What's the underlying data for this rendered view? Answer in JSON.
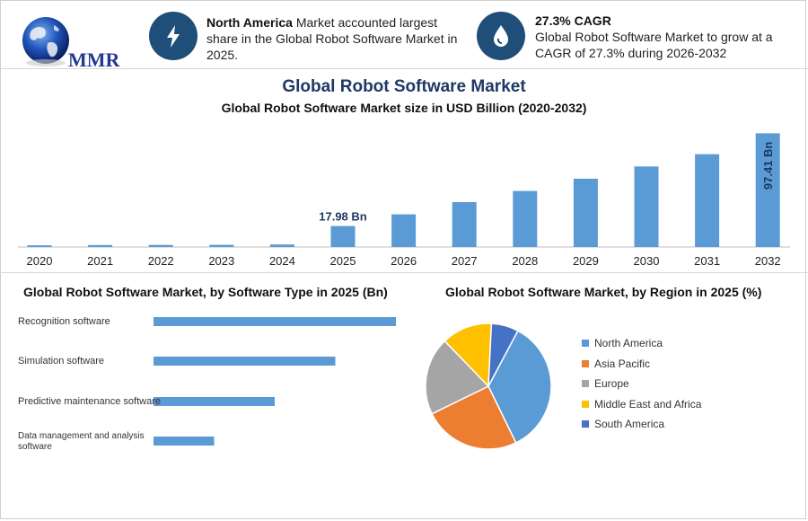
{
  "header": {
    "logo_text": "MMR",
    "info1": {
      "bold": "North America",
      "text": " Market accounted largest share in the Global Robot Software Market in 2025."
    },
    "info2": {
      "bold": "27.3% CAGR",
      "text": "Global Robot Software Market to grow at a CAGR of 27.3% during 2026-2032"
    }
  },
  "title": "Global Robot Software Market",
  "subtitle": "Global Robot Software Market size in USD Billion (2020-2032)",
  "colors": {
    "bar": "#5b9bd5",
    "navy": "#1f4e79",
    "north_america": "#5b9bd5",
    "asia_pacific": "#ed7d31",
    "europe": "#a5a5a5",
    "middle_east_africa": "#ffc000",
    "south_america": "#4472c4"
  },
  "icons": {
    "info1": "lightning-icon",
    "info2": "droplet-icon",
    "logo": "globe-icon"
  },
  "chart_data": [
    {
      "type": "bar",
      "title": "Global Robot Software Market size in USD Billion (2020-2032)",
      "categories": [
        "2020",
        "2021",
        "2022",
        "2023",
        "2024",
        "2025",
        "2026",
        "2027",
        "2028",
        "2029",
        "2030",
        "2031",
        "2032"
      ],
      "values": [
        1.5,
        1.7,
        1.8,
        1.9,
        2.2,
        17.98,
        28.0,
        38.5,
        48.0,
        58.5,
        69.0,
        79.5,
        97.41
      ],
      "data_labels": {
        "5": "17.98 Bn",
        "12": "97.41 Bn"
      },
      "ylim": [
        0,
        100
      ]
    },
    {
      "type": "bar",
      "orientation": "horizontal",
      "title": "Global Robot Software Market, by Software Type in 2025 (Bn)",
      "categories": [
        "Recognition software",
        "Simulation software",
        "Predictive maintenance software",
        "Data management and analysis software"
      ],
      "values": [
        8.0,
        6.0,
        4.0,
        2.0
      ],
      "xlim": [
        0,
        8
      ]
    },
    {
      "type": "pie",
      "title": "Global Robot Software Market, by Region in 2025 (%)",
      "labels": [
        "North America",
        "Asia Pacific",
        "Europe",
        "Middle East and Africa",
        "South America"
      ],
      "values": [
        35,
        25,
        20,
        13,
        7
      ]
    }
  ]
}
